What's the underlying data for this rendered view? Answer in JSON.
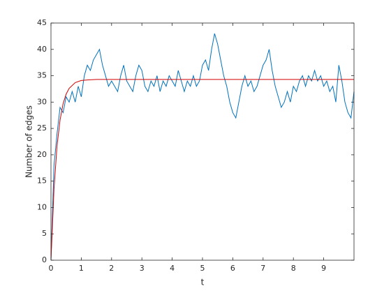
{
  "chart_data": {
    "type": "line",
    "xlabel": "t",
    "ylabel": "Number of edges",
    "xlim": [
      0,
      10
    ],
    "xticks": [
      0,
      1,
      2,
      3,
      4,
      5,
      6,
      7,
      8,
      9
    ],
    "ylim": [
      0,
      45
    ],
    "yticks": [
      0,
      5,
      10,
      15,
      20,
      25,
      30,
      35,
      40,
      45
    ],
    "series": [
      {
        "color": "#0072bd",
        "x": [
          0,
          0.1,
          0.2,
          0.3,
          0.4,
          0.5,
          0.6,
          0.7,
          0.8,
          0.9,
          1,
          1.1,
          1.2,
          1.3,
          1.4,
          1.5,
          1.6,
          1.7,
          1.8,
          1.9,
          2,
          2.1,
          2.2,
          2.3,
          2.4,
          2.5,
          2.6,
          2.7,
          2.8,
          2.9,
          3,
          3.1,
          3.2,
          3.3,
          3.4,
          3.5,
          3.6,
          3.7,
          3.8,
          3.9,
          4,
          4.1,
          4.2,
          4.3,
          4.4,
          4.5,
          4.6,
          4.7,
          4.8,
          4.9,
          5,
          5.1,
          5.2,
          5.3,
          5.4,
          5.5,
          5.6,
          5.7,
          5.8,
          5.9,
          6,
          6.1,
          6.2,
          6.3,
          6.4,
          6.5,
          6.6,
          6.7,
          6.8,
          6.9,
          7,
          7.1,
          7.2,
          7.3,
          7.4,
          7.5,
          7.6,
          7.7,
          7.8,
          7.9,
          8,
          8.1,
          8.2,
          8.3,
          8.4,
          8.5,
          8.6,
          8.7,
          8.8,
          8.9,
          9,
          9.1,
          9.2,
          9.3,
          9.4,
          9.5,
          9.6,
          9.7,
          9.8,
          9.9,
          10
        ],
        "values": [
          0,
          18,
          24,
          29,
          28,
          31,
          30,
          32,
          30,
          33,
          31,
          35,
          37,
          36,
          38,
          39,
          40,
          37,
          35,
          33,
          34,
          33,
          32,
          35,
          37,
          34,
          33,
          32,
          35,
          37,
          36,
          33,
          32,
          34,
          33,
          35,
          32,
          34,
          33,
          35,
          34,
          33,
          36,
          34,
          32,
          34,
          33,
          35,
          33,
          34,
          37,
          38,
          36,
          40,
          43,
          41,
          38,
          35,
          33,
          30,
          28,
          27,
          30,
          33,
          35,
          33,
          34,
          32,
          33,
          35,
          37,
          38,
          40,
          36,
          33,
          31,
          29,
          30,
          32,
          30,
          33,
          32,
          34,
          35,
          33,
          35,
          34,
          36,
          34,
          35,
          33,
          34,
          32,
          33,
          30,
          37,
          34,
          30,
          28,
          27,
          32
        ]
      },
      {
        "color": "#d00000",
        "x": [
          0,
          0.1,
          0.2,
          0.3,
          0.4,
          0.5,
          0.6,
          0.8,
          1,
          1.2,
          1.5,
          2,
          3,
          10
        ],
        "values": [
          0,
          13.5,
          21.7,
          26.6,
          29.7,
          31.5,
          32.6,
          33.7,
          34.1,
          34.2,
          34.3,
          34.3,
          34.3,
          34.3
        ]
      }
    ]
  }
}
